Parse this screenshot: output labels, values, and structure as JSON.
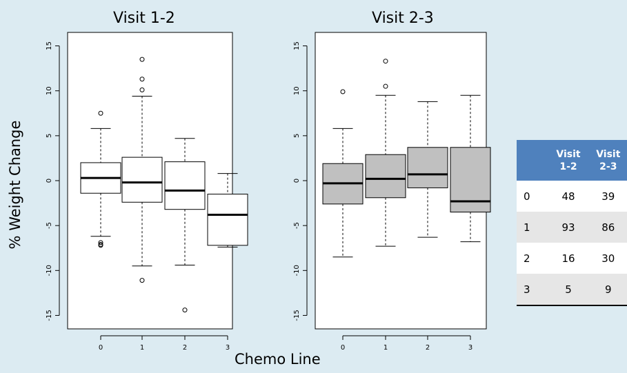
{
  "axis_label_y": "% Weight Change",
  "axis_label_x": "Chemo Line",
  "table": {
    "header": [
      "",
      "Visit 1-2",
      "Visit 2-3"
    ],
    "header_lines": [
      [
        "",
        ""
      ],
      [
        "Visit",
        "1-2"
      ],
      [
        "Visit",
        "2-3"
      ]
    ],
    "rows": [
      {
        "label": "0",
        "v12": "48",
        "v23": "39"
      },
      {
        "label": "1",
        "v12": "93",
        "v23": "86"
      },
      {
        "label": "2",
        "v12": "16",
        "v23": "30"
      },
      {
        "label": "3",
        "v12": "5",
        "v23": "9"
      }
    ]
  },
  "colors": {
    "background": "#dcebf2",
    "panel_bg": "#ffffff",
    "box_fill_visit12": "#ffffff",
    "box_fill_visit23": "#c0c0c0",
    "table_header": "#4f81bd"
  },
  "chart_data": [
    {
      "type": "boxplot",
      "title": "Visit 1-2",
      "categories": [
        "0",
        "1",
        "2",
        "3"
      ],
      "ylim": [
        -16.5,
        16.5
      ],
      "yticks": [
        -15,
        -10,
        -5,
        0,
        5,
        10,
        15
      ],
      "ytick_labels": [
        "-15",
        "-10",
        "-5",
        "0",
        "5",
        "10",
        "15"
      ],
      "box_fill": "#ffffff",
      "boxes": [
        {
          "category": "0",
          "whisker_low": -6.2,
          "q1": -1.4,
          "median": 0.3,
          "q3": 2.0,
          "whisker_high": 5.8,
          "outliers": [
            7.5,
            -6.9,
            -7.1,
            -7.2
          ]
        },
        {
          "category": "1",
          "whisker_low": -9.5,
          "q1": -2.4,
          "median": -0.2,
          "q3": 2.6,
          "whisker_high": 9.4,
          "outliers": [
            13.5,
            11.3,
            10.1,
            -11.1
          ]
        },
        {
          "category": "2",
          "whisker_low": -9.4,
          "q1": -3.2,
          "median": -1.1,
          "q3": 2.1,
          "whisker_high": 4.7,
          "outliers": [
            -14.4
          ]
        },
        {
          "category": "3",
          "whisker_low": -7.4,
          "q1": -7.2,
          "median": -3.8,
          "q3": -1.5,
          "whisker_high": 0.8,
          "outliers": []
        }
      ]
    },
    {
      "type": "boxplot",
      "title": "Visit 2-3",
      "categories": [
        "0",
        "1",
        "2",
        "3"
      ],
      "ylim": [
        -16.5,
        16.5
      ],
      "yticks": [
        -15,
        -10,
        -5,
        0,
        5,
        10,
        15
      ],
      "ytick_labels": [
        "-15",
        "-10",
        "-5",
        "0",
        "5",
        "10",
        "15"
      ],
      "box_fill": "#c0c0c0",
      "boxes": [
        {
          "category": "0",
          "whisker_low": -8.5,
          "q1": -2.6,
          "median": -0.3,
          "q3": 1.9,
          "whisker_high": 5.8,
          "outliers": [
            9.9
          ]
        },
        {
          "category": "1",
          "whisker_low": -7.3,
          "q1": -1.9,
          "median": 0.2,
          "q3": 2.9,
          "whisker_high": 9.5,
          "outliers": [
            13.3,
            10.5
          ]
        },
        {
          "category": "2",
          "whisker_low": -6.3,
          "q1": -0.8,
          "median": 0.7,
          "q3": 3.7,
          "whisker_high": 8.8,
          "outliers": []
        },
        {
          "category": "3",
          "whisker_low": -6.8,
          "q1": -3.5,
          "median": -2.3,
          "q3": 3.7,
          "whisker_high": 9.5,
          "outliers": []
        }
      ]
    }
  ]
}
